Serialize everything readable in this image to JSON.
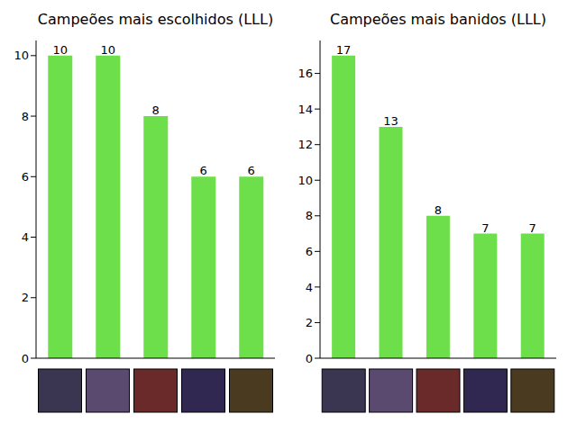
{
  "chart_data": [
    {
      "type": "bar",
      "title": "Campeões mais escolhidos (LLL)",
      "categories": [
        null,
        null,
        null,
        null,
        null
      ],
      "values": [
        10,
        10,
        8,
        6,
        6
      ],
      "color": "#6ddf4a",
      "ylim": [
        0,
        10.5
      ],
      "yticks": [
        0,
        2,
        4,
        6,
        8,
        10
      ],
      "data_labels": true,
      "grid": false
    },
    {
      "type": "bar",
      "title": "Campeões mais banidos (LLL)",
      "categories": [
        null,
        null,
        null,
        null,
        null
      ],
      "values": [
        17,
        13,
        8,
        7,
        7
      ],
      "color": "#6ddf4a",
      "ylim": [
        0,
        17.85
      ],
      "yticks": [
        0,
        2,
        4,
        6,
        8,
        10,
        12,
        14,
        16
      ],
      "data_labels": true,
      "grid": false
    }
  ]
}
